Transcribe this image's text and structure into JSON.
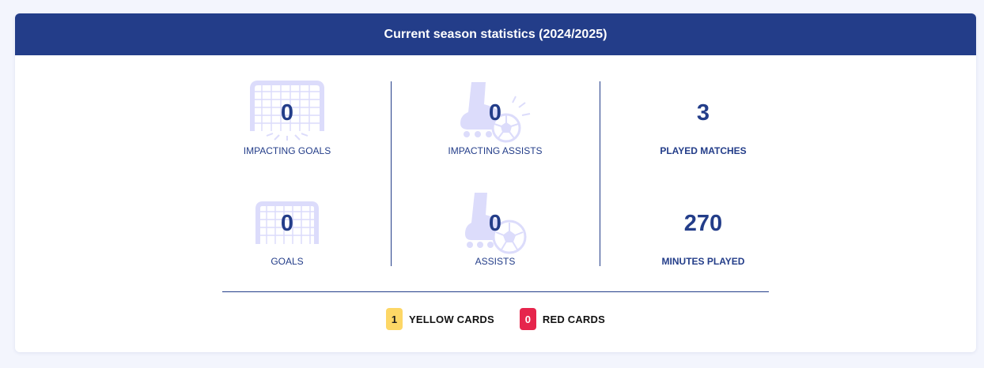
{
  "header": {
    "title": "Current season statistics (2024/2025)"
  },
  "stats": {
    "impacting_goals": {
      "value": "0",
      "label": "IMPACTING GOALS",
      "icon": "goal-net-icon"
    },
    "impacting_assists": {
      "value": "0",
      "label": "IMPACTING ASSISTS",
      "icon": "boot-ball-icon"
    },
    "played_matches": {
      "value": "3",
      "label": "PLAYED MATCHES"
    },
    "goals": {
      "value": "0",
      "label": "GOALS",
      "icon": "goal-net-icon"
    },
    "assists": {
      "value": "0",
      "label": "ASSISTS",
      "icon": "boot-ball-icon"
    },
    "minutes_played": {
      "value": "270",
      "label": "MINUTES PLAYED"
    }
  },
  "cards": {
    "yellow": {
      "count": "1",
      "label": "YELLOW CARDS",
      "color": "#fdd766"
    },
    "red": {
      "count": "0",
      "label": "RED CARDS",
      "color": "#e6254c"
    }
  },
  "colors": {
    "accent": "#233d89",
    "icon_tint": "#dcdcfb"
  }
}
